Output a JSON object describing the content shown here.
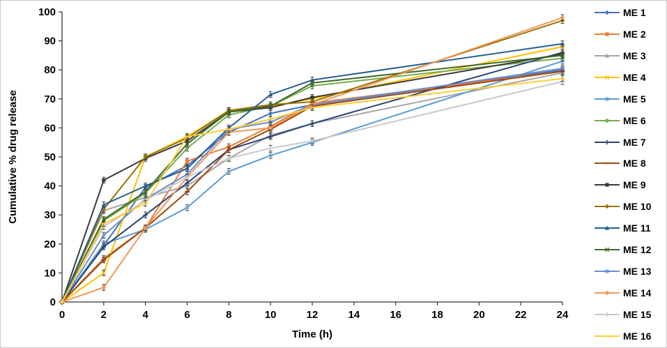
{
  "figure": {
    "background": "#ffffff",
    "border_color": "#c8c8c8",
    "axis_color": "#333333",
    "error_bar_color": "#404040"
  },
  "chart_data": {
    "type": "line",
    "title": "",
    "xlabel": "Time (h)",
    "ylabel": "Cumulative % drug release",
    "xlim": [
      0,
      24
    ],
    "ylim": [
      0,
      100
    ],
    "xticks": [
      0,
      2,
      4,
      6,
      8,
      10,
      12,
      14,
      16,
      18,
      20,
      22,
      24
    ],
    "yticks": [
      0,
      10,
      20,
      30,
      40,
      50,
      60,
      70,
      80,
      90,
      100
    ],
    "grid": false,
    "legend_position": "right",
    "error_bar": 1,
    "x": [
      0,
      2,
      4,
      6,
      8,
      10,
      12,
      24
    ],
    "series": [
      {
        "name": "ME 1",
        "color": "#4472C4",
        "marker": "diamond",
        "values": [
          0,
          19.5,
          39.5,
          47,
          58.5,
          65,
          68,
          80
        ]
      },
      {
        "name": "ME 2",
        "color": "#ED7D31",
        "marker": "square",
        "values": [
          0,
          15,
          25.5,
          48.5,
          53.5,
          60.5,
          68.5,
          79.5
        ]
      },
      {
        "name": "ME 3",
        "color": "#A5A5A5",
        "marker": "triangle",
        "values": [
          0,
          31.5,
          36,
          40,
          49.5,
          57.5,
          61.5,
          79
        ]
      },
      {
        "name": "ME 4",
        "color": "#FFC000",
        "marker": "x",
        "values": [
          0,
          10,
          50,
          57,
          66,
          67.5,
          70,
          88
        ]
      },
      {
        "name": "ME 5",
        "color": "#5B9BD5",
        "marker": "asterisk",
        "values": [
          0,
          20,
          25,
          32.5,
          45,
          50.5,
          55,
          83
        ]
      },
      {
        "name": "ME 6",
        "color": "#70AD47",
        "marker": "circle",
        "values": [
          0,
          28,
          37.5,
          53,
          64.5,
          67.5,
          74.5,
          84
        ]
      },
      {
        "name": "ME 7",
        "color": "#264478",
        "marker": "plus",
        "values": [
          0,
          19,
          30,
          41,
          52.5,
          57,
          61.5,
          86
        ]
      },
      {
        "name": "ME 8",
        "color": "#9E480E",
        "marker": "dash",
        "values": [
          0,
          14.5,
          25.5,
          38,
          52.5,
          59.5,
          67.5,
          79.5
        ]
      },
      {
        "name": "ME 9",
        "color": "#3B3838",
        "marker": "square",
        "values": [
          0,
          42,
          49.5,
          55.5,
          65.5,
          67,
          70.5,
          85.5
        ]
      },
      {
        "name": "ME 10",
        "color": "#997300",
        "marker": "diamond",
        "values": [
          0,
          32,
          50,
          56.5,
          66,
          68,
          69,
          97
        ]
      },
      {
        "name": "ME 11",
        "color": "#255E91",
        "marker": "triangle",
        "values": [
          0,
          33.5,
          40,
          46,
          60,
          71.5,
          76.5,
          89
        ]
      },
      {
        "name": "ME 12",
        "color": "#43682B",
        "marker": "x",
        "values": [
          0,
          28.5,
          38,
          54.5,
          65.5,
          67.5,
          75.5,
          85
        ]
      },
      {
        "name": "ME 13",
        "color": "#698ED0",
        "marker": "asterisk",
        "values": [
          0,
          23,
          35.5,
          44,
          59.5,
          62,
          68,
          80.5
        ]
      },
      {
        "name": "ME 14",
        "color": "#F1975A",
        "marker": "circle",
        "values": [
          0,
          5,
          25.5,
          43,
          58.5,
          60,
          68,
          98
        ]
      },
      {
        "name": "ME 15",
        "color": "#C9C9C9",
        "marker": "plus",
        "values": [
          0,
          26,
          35,
          43,
          49.5,
          53,
          55.5,
          76
        ]
      },
      {
        "name": "ME 16",
        "color": "#FFCD33",
        "marker": "dash",
        "values": [
          0,
          27,
          34,
          57,
          59.5,
          63,
          67,
          77
        ]
      }
    ]
  }
}
